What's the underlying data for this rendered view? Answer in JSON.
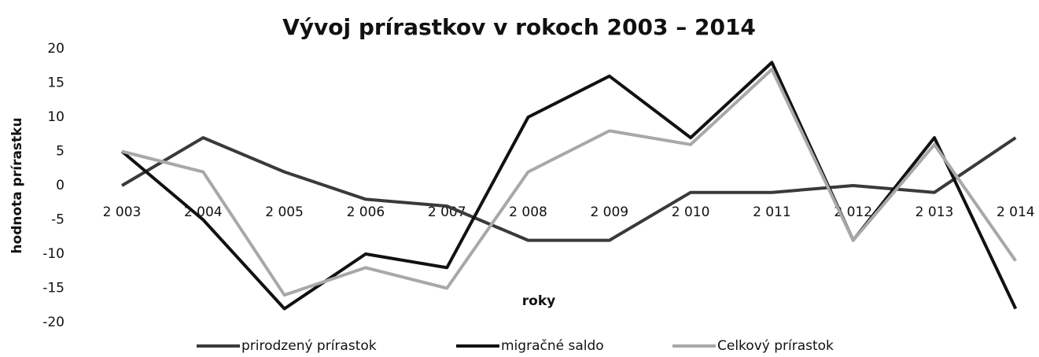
{
  "chart_data": {
    "type": "line",
    "title": "Vývoj prírastkov v rokoch 2003 – 2014",
    "x_label": "roky",
    "y_label": "hodnota prírastku",
    "categories": [
      "2 003",
      "2 004",
      "2 005",
      "2 006",
      "2 007",
      "2 008",
      "2 009",
      "2 010",
      "2 011",
      "2 012",
      "2 013",
      "2 014"
    ],
    "series": [
      {
        "name": "prirodzený prírastok",
        "color": "#3a3a3a",
        "values": [
          0,
          7,
          2,
          -2,
          -3,
          -8,
          -8,
          -1,
          -1,
          0,
          -1,
          7
        ]
      },
      {
        "name": "migračné saldo",
        "color": "#111111",
        "values": [
          5,
          -5,
          -18,
          -10,
          -12,
          10,
          16,
          7,
          18,
          -8,
          7,
          -18
        ]
      },
      {
        "name": "Celkový prírastok",
        "color": "#a8a8a8",
        "values": [
          5,
          2,
          -16,
          -12,
          -15,
          2,
          8,
          6,
          17,
          -8,
          6,
          -11
        ]
      }
    ],
    "ylim": [
      -20,
      20
    ],
    "yticks": [
      -20,
      -15,
      -10,
      -5,
      0,
      5,
      10,
      15,
      20
    ],
    "grid": false,
    "legend": "bottom"
  }
}
